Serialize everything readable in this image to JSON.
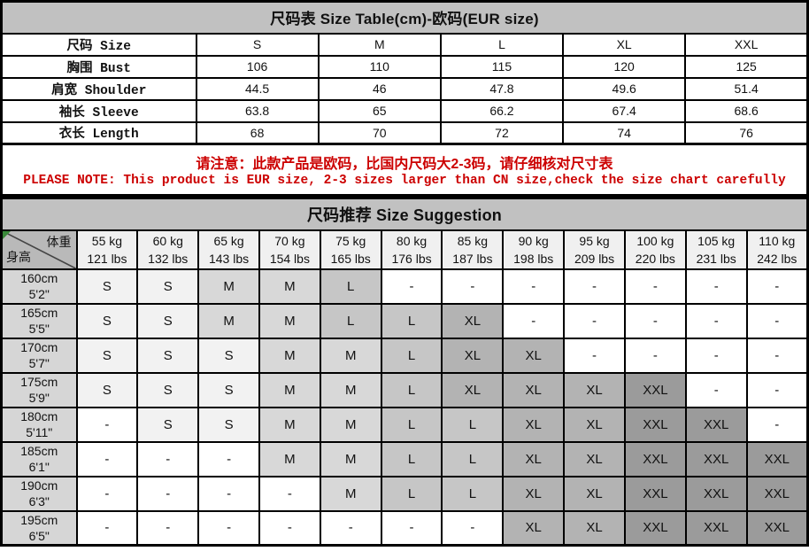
{
  "chart_data": [
    {
      "type": "table",
      "name": "size_table",
      "title": "尺码表 Size Table(cm)-欧码(EUR size)",
      "unit": "cm",
      "rows": [
        {
          "label": "尺码 Size",
          "values": [
            "S",
            "M",
            "L",
            "XL",
            "XXL"
          ]
        },
        {
          "label": "胸围 Bust",
          "values": [
            "106",
            "110",
            "115",
            "120",
            "125"
          ]
        },
        {
          "label": "肩宽 Shoulder",
          "values": [
            "44.5",
            "46",
            "47.8",
            "49.6",
            "51.4"
          ]
        },
        {
          "label": "袖长 Sleeve",
          "values": [
            "63.8",
            "65",
            "66.2",
            "67.4",
            "68.6"
          ]
        },
        {
          "label": "衣长 Length",
          "values": [
            "68",
            "70",
            "72",
            "74",
            "76"
          ]
        }
      ]
    },
    {
      "type": "table",
      "name": "size_suggestion",
      "title": "尺码推荐 Size Suggestion",
      "corner": {
        "top_right_label": "体重",
        "bottom_left_label": "身高"
      },
      "weight_columns": [
        {
          "kg": "55 kg",
          "lbs": "121 lbs"
        },
        {
          "kg": "60 kg",
          "lbs": "132 lbs"
        },
        {
          "kg": "65 kg",
          "lbs": "143 lbs"
        },
        {
          "kg": "70 kg",
          "lbs": "154 lbs"
        },
        {
          "kg": "75 kg",
          "lbs": "165 lbs"
        },
        {
          "kg": "80 kg",
          "lbs": "176 lbs"
        },
        {
          "kg": "85 kg",
          "lbs": "187 lbs"
        },
        {
          "kg": "90 kg",
          "lbs": "198 lbs"
        },
        {
          "kg": "95 kg",
          "lbs": "209 lbs"
        },
        {
          "kg": "100 kg",
          "lbs": "220 lbs"
        },
        {
          "kg": "105 kg",
          "lbs": "231 lbs"
        },
        {
          "kg": "110 kg",
          "lbs": "242 lbs"
        }
      ],
      "rows": [
        {
          "height_cm": "160cm",
          "height_ft": "5'2\"",
          "cells": [
            "S",
            "S",
            "M",
            "M",
            "L",
            "-",
            "-",
            "-",
            "-",
            "-",
            "-",
            "-"
          ]
        },
        {
          "height_cm": "165cm",
          "height_ft": "5'5\"",
          "cells": [
            "S",
            "S",
            "M",
            "M",
            "L",
            "L",
            "XL",
            "-",
            "-",
            "-",
            "-",
            "-"
          ]
        },
        {
          "height_cm": "170cm",
          "height_ft": "5'7\"",
          "cells": [
            "S",
            "S",
            "S",
            "M",
            "M",
            "L",
            "XL",
            "XL",
            "-",
            "-",
            "-",
            "-"
          ]
        },
        {
          "height_cm": "175cm",
          "height_ft": "5'9\"",
          "cells": [
            "S",
            "S",
            "S",
            "M",
            "M",
            "L",
            "XL",
            "XL",
            "XL",
            "XXL",
            "-",
            "-"
          ]
        },
        {
          "height_cm": "180cm",
          "height_ft": "5'11\"",
          "cells": [
            "-",
            "S",
            "S",
            "M",
            "M",
            "L",
            "L",
            "XL",
            "XL",
            "XXL",
            "XXL",
            "-"
          ]
        },
        {
          "height_cm": "185cm",
          "height_ft": "6'1\"",
          "cells": [
            "-",
            "-",
            "-",
            "M",
            "M",
            "L",
            "L",
            "XL",
            "XL",
            "XXL",
            "XXL",
            "XXL"
          ]
        },
        {
          "height_cm": "190cm",
          "height_ft": "6'3\"",
          "cells": [
            "-",
            "-",
            "-",
            "-",
            "M",
            "L",
            "L",
            "XL",
            "XL",
            "XXL",
            "XXL",
            "XXL"
          ]
        },
        {
          "height_cm": "195cm",
          "height_ft": "6'5\"",
          "cells": [
            "-",
            "-",
            "-",
            "-",
            "-",
            "-",
            "-",
            "XL",
            "XL",
            "XXL",
            "XXL",
            "XXL"
          ]
        }
      ],
      "cell_colors": {
        "S": "#f2f2f2",
        "M": "#d8d8d8",
        "L": "#c6c6c6",
        "XL": "#b3b3b3",
        "XXL": "#9b9b9b",
        "-": "#ffffff"
      }
    }
  ],
  "notice": {
    "line_cn": "请注意：此款产品是欧码，比国内尺码大2-3码，请仔细核对尺寸表",
    "line_en": "PLEASE NOTE: This product is EUR size, 2-3 sizes larger than CN size,check the size chart carefully"
  },
  "colors": {
    "title_bar": "#c1c1c1",
    "corner_bg": "#b9b9b9",
    "height_col_bg": "#d6d6d6",
    "weight_header_bg": "#f0f0f0",
    "notice_text": "#cc0000",
    "border": "#000000",
    "corner_marker": "#3a8a3a",
    "page_bg": "#ffffff"
  }
}
